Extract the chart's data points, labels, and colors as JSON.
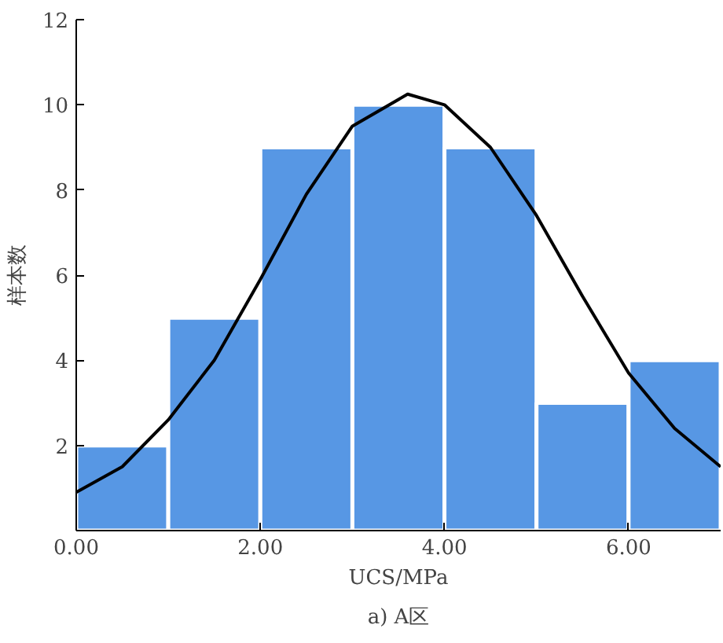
{
  "chart_data": {
    "type": "histogram",
    "title": "a) A区",
    "xlabel": "UCS/MPa",
    "ylabel": "样本数",
    "bins": [
      0,
      1,
      2,
      3,
      4,
      5,
      6,
      7
    ],
    "values": [
      2,
      5,
      9,
      10,
      9,
      3,
      4
    ],
    "color": "#5797e4",
    "series": [
      {
        "type": "line",
        "color": "#000000",
        "x": [
          0,
          0.5,
          1,
          1.5,
          2,
          2.5,
          3,
          3.6,
          4,
          4.5,
          5,
          5.5,
          6,
          6.5,
          7
        ],
        "values": [
          0.9,
          1.5,
          2.6,
          4.0,
          5.9,
          7.9,
          9.5,
          10.25,
          10.0,
          9.0,
          7.4,
          5.5,
          3.7,
          2.4,
          1.5
        ]
      }
    ],
    "xlim": [
      0,
      7
    ],
    "xticks": [
      {
        "value": 0,
        "label": "0.00"
      },
      {
        "value": 2,
        "label": "2.00"
      },
      {
        "value": 4,
        "label": "4.00"
      },
      {
        "value": 6,
        "label": "6.00"
      }
    ],
    "ylim": [
      0,
      12
    ],
    "yticks": [
      2,
      4,
      6,
      8,
      10,
      12
    ],
    "grid": false
  }
}
